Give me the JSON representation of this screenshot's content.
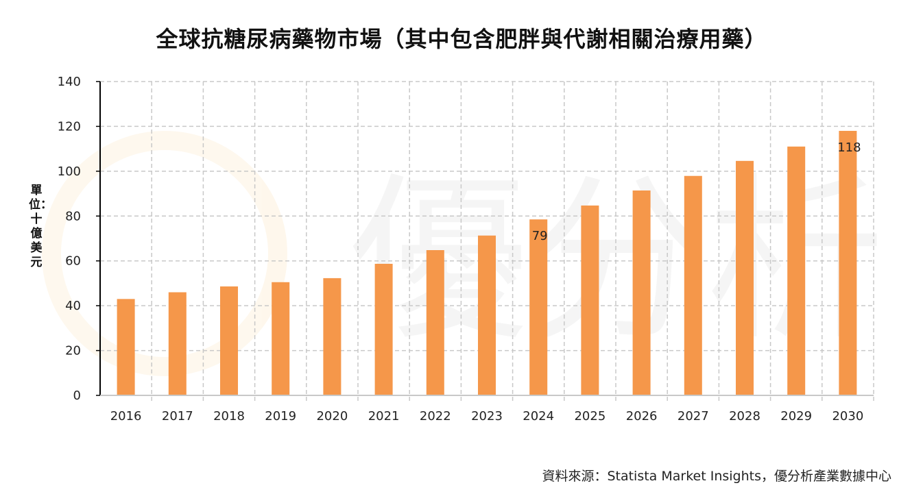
{
  "chart_data": {
    "type": "bar",
    "title": "全球抗糖尿病藥物市場（其中包含肥胖與代謝相關治療用藥）",
    "xlabel": "",
    "ylabel": "單位：十億美元",
    "ylim": [
      0,
      140
    ],
    "yticks": [
      0,
      20,
      40,
      60,
      80,
      100,
      120,
      140
    ],
    "grid": true,
    "categories": [
      "2016",
      "2017",
      "2018",
      "2019",
      "2020",
      "2021",
      "2022",
      "2023",
      "2024",
      "2025",
      "2026",
      "2027",
      "2028",
      "2029",
      "2030"
    ],
    "values": [
      43,
      46,
      48.6,
      50.5,
      52.3,
      58.7,
      64.8,
      71.3,
      78.5,
      84.7,
      91.4,
      97.9,
      104.6,
      111,
      118
    ],
    "data_labels": [
      {
        "category": "2024",
        "text": "79"
      },
      {
        "category": "2030",
        "text": "118"
      }
    ],
    "bar_color": "#F5974A",
    "source": "資料來源：Statista Market Insights，優分析產業數據中心",
    "watermark": "優分析"
  }
}
